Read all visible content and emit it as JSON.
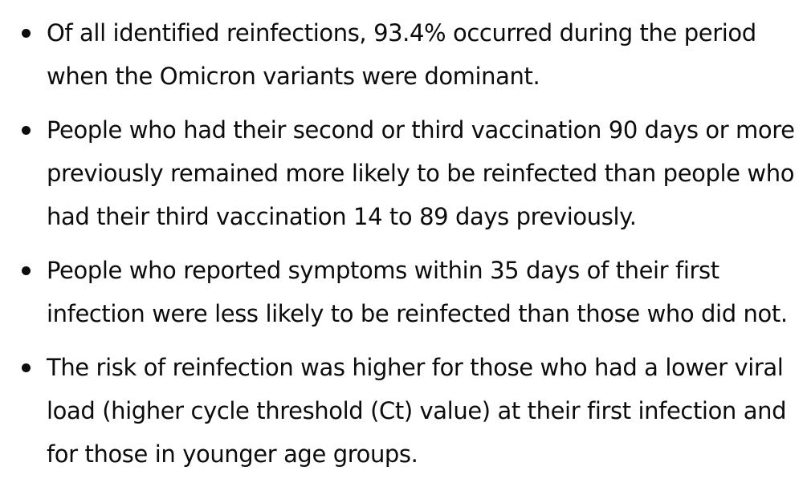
{
  "bullets": [
    {
      "text": "Of all identified reinfections, 93.4% occurred during the period when the Omicron variants were dominant."
    },
    {
      "text": "People who had their second or third vaccination 90 days or more previously remained more likely to be reinfected than people who had their third vaccination 14 to 89 days previously."
    },
    {
      "text": "People who reported symptoms within 35 days of their first infection were less likely to be reinfected than those who did not."
    },
    {
      "text": "The risk of reinfection was higher for those who had a lower viral load (higher cycle threshold (Ct) value) at their first infection and for those in younger age groups."
    }
  ]
}
